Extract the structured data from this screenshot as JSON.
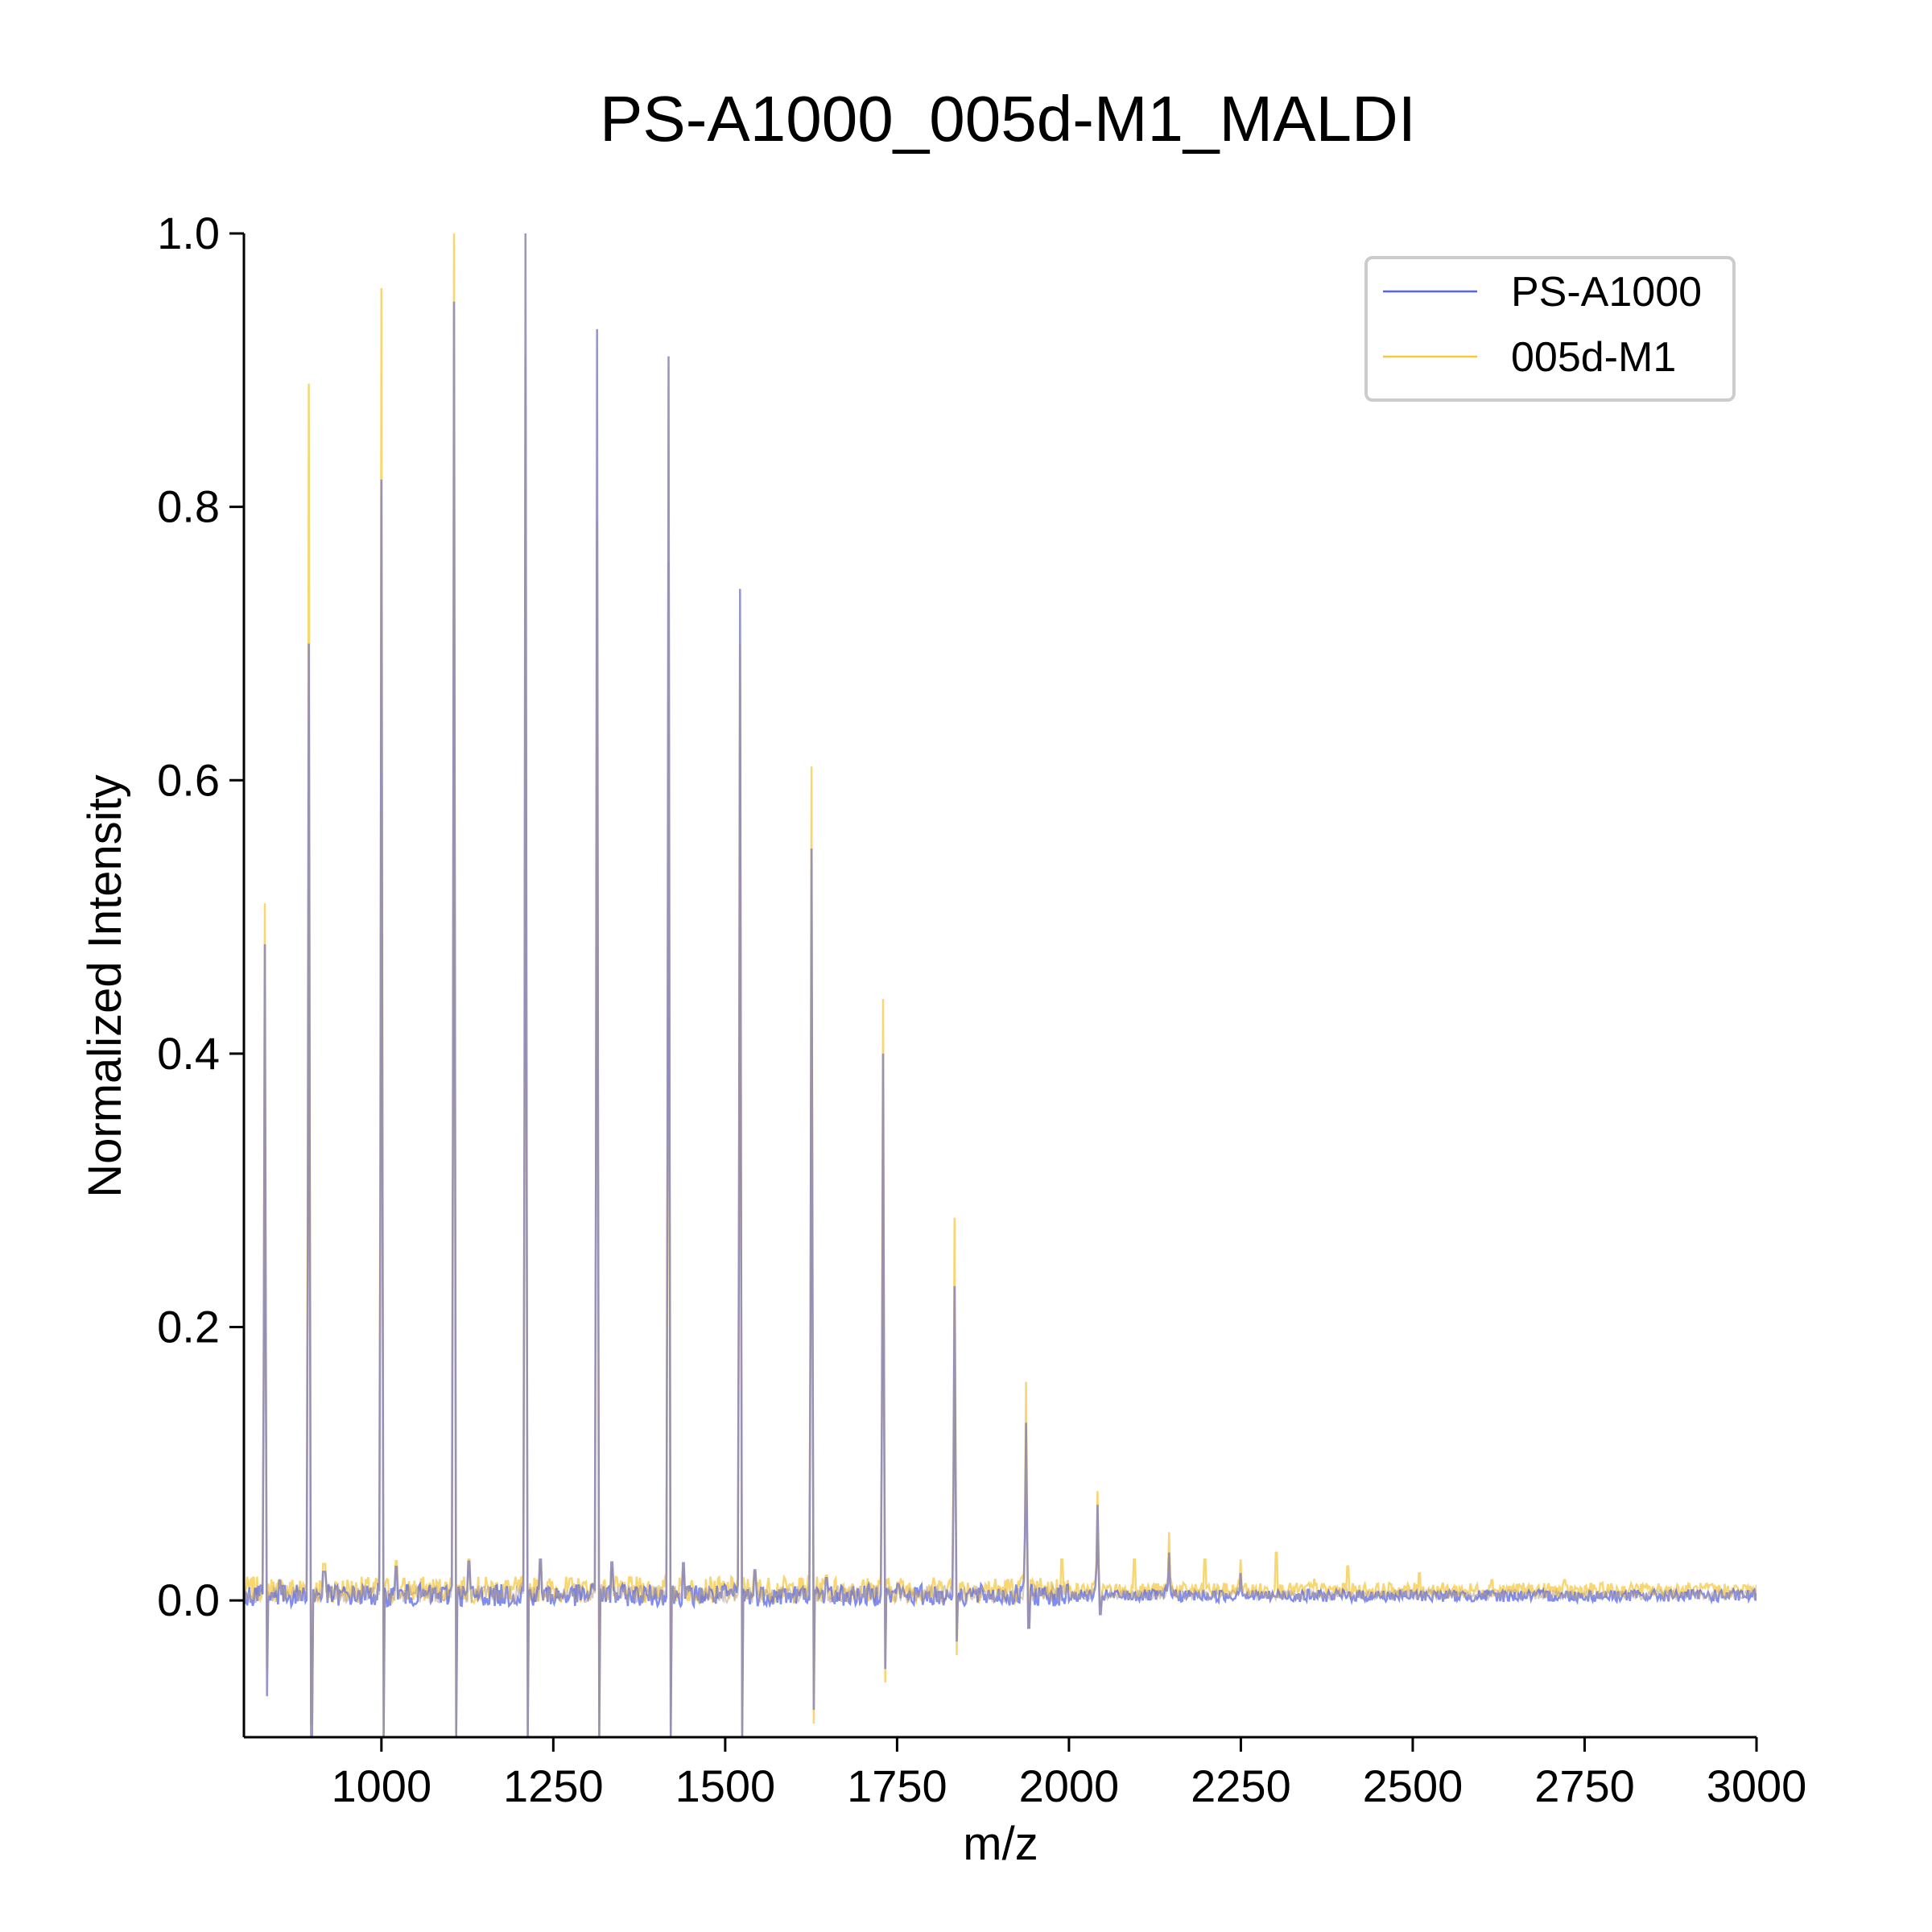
{
  "chart_data": {
    "type": "line",
    "title": "PS-A1000_005d-M1_MALDI",
    "xlabel": "m/z",
    "ylabel": "Normalized Intensity",
    "xlim": [
      800,
      3000
    ],
    "ylim": [
      -0.1,
      1.0
    ],
    "x_ticks": [
      1000,
      1250,
      1500,
      1750,
      2000,
      2250,
      2500,
      2750,
      3000
    ],
    "y_ticks": [
      0.0,
      0.2,
      0.4,
      0.6,
      0.8,
      1.0
    ],
    "y_tick_labels": [
      "0.0",
      "0.2",
      "0.4",
      "0.6",
      "0.8",
      "1.0"
    ],
    "grid": false,
    "legend_position": "top-right",
    "colors": {
      "PS-A1000": "#5566ee",
      "005d-M1": "#f5c842",
      "overlap": "#b4a090"
    },
    "series": [
      {
        "name": "PS-A1000",
        "peaks": [
          {
            "mz": 830,
            "y": 0.48,
            "neg": -0.07
          },
          {
            "mz": 895,
            "y": 0.7,
            "neg": -0.1
          },
          {
            "mz": 1000,
            "y": 0.82,
            "neg": -0.1
          },
          {
            "mz": 1105,
            "y": 0.95,
            "neg": -0.1
          },
          {
            "mz": 1209,
            "y": 1.0,
            "neg": -0.1
          },
          {
            "mz": 1313,
            "y": 0.93,
            "neg": -0.1
          },
          {
            "mz": 1417,
            "y": 0.91,
            "neg": -0.1
          },
          {
            "mz": 1521,
            "y": 0.74,
            "neg": -0.1
          },
          {
            "mz": 1625,
            "y": 0.55,
            "neg": -0.08
          },
          {
            "mz": 1729,
            "y": 0.4,
            "neg": -0.05
          },
          {
            "mz": 1833,
            "y": 0.23,
            "neg": -0.03
          },
          {
            "mz": 1938,
            "y": 0.13,
            "neg": -0.02
          },
          {
            "mz": 2042,
            "y": 0.07,
            "neg": -0.01
          },
          {
            "mz": 2146,
            "y": 0.035,
            "neg": 0
          },
          {
            "mz": 2250,
            "y": 0.02,
            "neg": 0
          }
        ]
      },
      {
        "name": "005d-M1",
        "peaks": [
          {
            "mz": 830,
            "y": 0.51,
            "neg": -0.05
          },
          {
            "mz": 895,
            "y": 0.89,
            "neg": -0.09
          },
          {
            "mz": 1000,
            "y": 0.96,
            "neg": -0.1
          },
          {
            "mz": 1105,
            "y": 1.0,
            "neg": -0.1
          },
          {
            "mz": 1209,
            "y": 0.91,
            "neg": -0.1
          },
          {
            "mz": 1313,
            "y": 0.79,
            "neg": -0.1
          },
          {
            "mz": 1417,
            "y": 0.76,
            "neg": -0.1
          },
          {
            "mz": 1521,
            "y": 0.7,
            "neg": -0.1
          },
          {
            "mz": 1625,
            "y": 0.61,
            "neg": -0.09
          },
          {
            "mz": 1729,
            "y": 0.44,
            "neg": -0.06
          },
          {
            "mz": 1833,
            "y": 0.28,
            "neg": -0.04
          },
          {
            "mz": 1938,
            "y": 0.16,
            "neg": -0.02
          },
          {
            "mz": 2042,
            "y": 0.08,
            "neg": -0.005
          },
          {
            "mz": 2146,
            "y": 0.05,
            "neg": 0
          },
          {
            "mz": 2250,
            "y": 0.03,
            "neg": 0
          },
          {
            "mz": 2354,
            "y": 0.01,
            "neg": 0
          }
        ],
        "minor_peaks": [
          {
            "mz": 1990,
            "y": 0.03
          },
          {
            "mz": 2095,
            "y": 0.03
          },
          {
            "mz": 2198,
            "y": 0.03
          },
          {
            "mz": 2302,
            "y": 0.035
          },
          {
            "mz": 2406,
            "y": 0.025
          },
          {
            "mz": 2510,
            "y": 0.02
          },
          {
            "mz": 2615,
            "y": 0.015
          },
          {
            "mz": 2720,
            "y": 0.015
          },
          {
            "mz": 2825,
            "y": 0.01
          }
        ]
      }
    ]
  }
}
